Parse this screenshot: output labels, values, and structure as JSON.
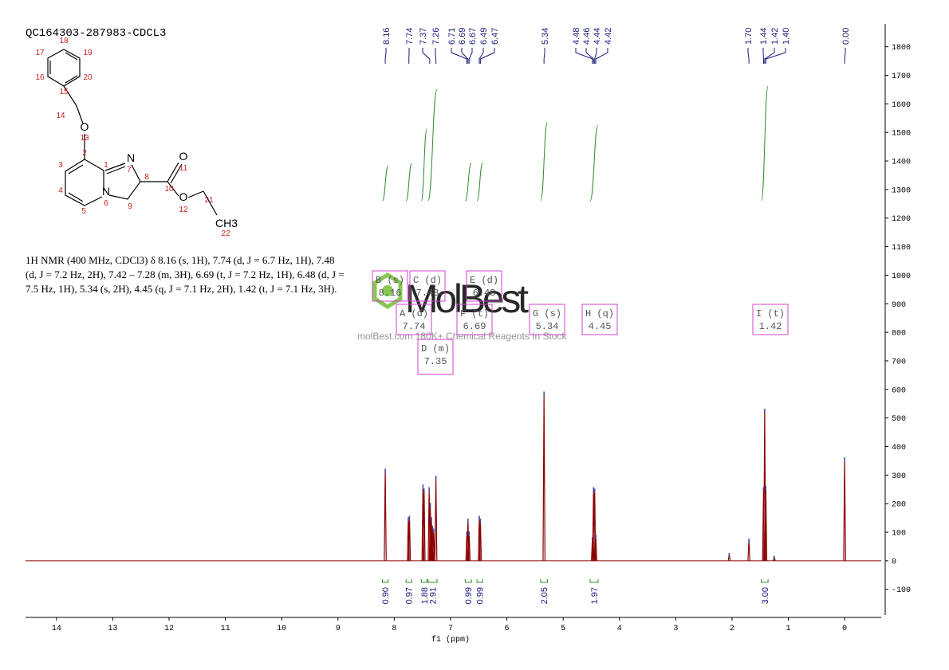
{
  "chart_data": {
    "type": "spectrum",
    "title": "QC164303-287983-CDCL3",
    "xlabel": "f1 (ppm)",
    "xlim": [
      14.55,
      -0.65
    ],
    "xticks": [
      0,
      1,
      2,
      3,
      4,
      5,
      6,
      7,
      8,
      9,
      10,
      11,
      12,
      13,
      14
    ],
    "ylim": [
      -190,
      1880
    ],
    "yticks": [
      -100,
      0,
      100,
      200,
      300,
      400,
      500,
      600,
      700,
      800,
      900,
      1000,
      1100,
      1200,
      1300,
      1400,
      1500,
      1600,
      1700,
      1800
    ],
    "color": "#8b0000",
    "x": [
      8.16,
      7.75,
      7.73,
      7.49,
      7.47,
      7.38,
      7.36,
      7.34,
      7.32,
      7.3,
      7.26,
      6.71,
      6.69,
      6.67,
      6.49,
      6.47,
      5.34,
      4.48,
      4.46,
      4.44,
      4.42,
      2.05,
      1.7,
      1.44,
      1.42,
      1.4,
      1.25,
      0.0
    ],
    "values": [
      320,
      150,
      155,
      265,
      250,
      255,
      200,
      150,
      120,
      110,
      295,
      100,
      145,
      100,
      155,
      145,
      590,
      80,
      255,
      250,
      90,
      25,
      75,
      255,
      530,
      260,
      15,
      360
    ],
    "peak_labels": [
      8.16,
      7.74,
      7.37,
      7.26,
      6.71,
      6.69,
      6.67,
      6.49,
      6.47,
      5.34,
      4.48,
      4.46,
      4.44,
      4.42,
      {
        "value": 1.7,
        "label": "1.70"
      },
      1.44,
      1.42,
      {
        "value": 1.4,
        "label": "1.40"
      },
      {
        "value": 0,
        "label": "0.00"
      }
    ],
    "peak_label_color": "#1a1a80",
    "integrals": {
      "color": "#2e8b2e",
      "values": [
        0.9,
        0.97,
        1.88,
        2.91,
        0.99,
        0.99,
        2.05,
        1.97,
        3.0
      ],
      "value_labels": [
        "0.90",
        "0.97",
        "1.88",
        "2.91",
        "0.99",
        "0.99",
        "2.05",
        "1.97",
        "3.00"
      ],
      "ranges": [
        [
          8.21,
          8.11
        ],
        [
          7.79,
          7.69
        ],
        [
          7.52,
          7.42
        ],
        [
          7.4,
          7.24
        ],
        [
          6.74,
          6.63
        ],
        [
          6.53,
          6.43
        ],
        [
          5.4,
          5.28
        ],
        [
          4.52,
          4.38
        ],
        [
          1.48,
          1.36
        ]
      ]
    },
    "multiplets": {
      "color": "#d040d0",
      "items": [
        {
          "label": "B (s)",
          "shift": 8.16
        },
        {
          "label": "C (d)",
          "shift": 7.48
        },
        {
          "label": "E (d)",
          "shift": 6.48
        },
        {
          "label": "A (d)",
          "shift": 7.74
        },
        {
          "label": "F (t)",
          "shift": 6.69
        },
        {
          "label": "G (s)",
          "shift": 5.34
        },
        {
          "label": "H (q)",
          "shift": 4.45
        },
        {
          "label": "I (t)",
          "shift": 1.42
        },
        {
          "label": "D (m)",
          "shift": 7.35
        }
      ]
    }
  },
  "description": "1H NMR (400 MHz, CDCl3) δ 8.16 (s, 1H), 7.74 (d, J = 6.7 Hz, 1H), 7.48 (d, J = 7.2 Hz, 2H), 7.42 – 7.28 (m, 3H), 6.69 (t, J = 7.2 Hz, 1H), 6.48 (d, J = 7.5 Hz, 1H), 5.34 (s, 2H), 4.45 (q, J = 7.1 Hz, 2H), 1.42 (t, J = 7.1 Hz, 3H).",
  "structure": {
    "labels": [
      "18",
      "17",
      "19",
      "16",
      "20",
      "15",
      "14",
      "O",
      "13",
      "2",
      "3",
      "1",
      "N",
      "7",
      "O",
      "11",
      "8",
      "10",
      "4",
      "N",
      "6",
      "O",
      "12",
      "21",
      "5",
      "9",
      "CH3",
      "22"
    ]
  },
  "watermark": {
    "brand": "MolBest",
    "tagline": "molBest.com 180K+ Chemical Reagents In Stock"
  }
}
